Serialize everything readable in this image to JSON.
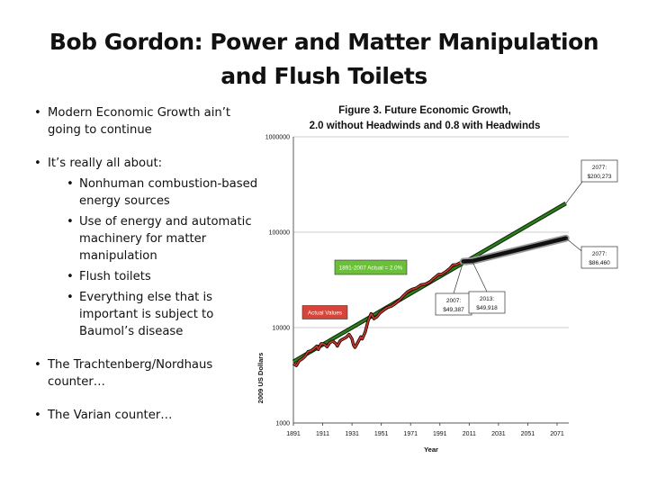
{
  "slide": {
    "title_line1": "Bob Gordon: Power and Matter Manipulation",
    "title_line2": "and Flush Toilets"
  },
  "bullets": {
    "b1": "Modern Economic Growth ain’t going to continue",
    "b2": "It’s really all about:",
    "s1": "Nonhuman combustion-based energy sources",
    "s2": "Use of energy and automatic machinery for matter manipulation",
    "s3": "Flush toilets",
    "s4": "Everything else that is important is subject to Baumol’s disease",
    "b3": "The Trachtenberg/Nordhaus counter…",
    "b4": "The Varian counter…"
  },
  "chart_data": {
    "type": "line",
    "title_line1": "Figure 3. Future Economic Growth,",
    "title_line2": "2.0 without Headwinds and 0.8 with Headwinds",
    "xlabel": "Year",
    "ylabel": "2009 US Dollars",
    "yscale": "log",
    "xlim": [
      1891,
      2079
    ],
    "ylim": [
      1000,
      1000000
    ],
    "x_ticks": [
      "1891",
      "1911",
      "1931",
      "1951",
      "1971",
      "1991",
      "2011",
      "2031",
      "2051",
      "2071"
    ],
    "y_ticks": [
      "1000",
      "10000",
      "100000",
      "1000000"
    ],
    "grid": "horizontal",
    "colors": {
      "actual": "#c0392b",
      "trend": "#2e7d1e",
      "headwinds": "#111111",
      "green_label_bg": "#6cbf3a",
      "red_label_bg": "#d9443a"
    },
    "series": [
      {
        "name": "Actual Values",
        "x": [
          1891,
          1893,
          1895,
          1897,
          1899,
          1901,
          1903,
          1905,
          1907,
          1908,
          1910,
          1912,
          1914,
          1916,
          1918,
          1920,
          1921,
          1923,
          1925,
          1927,
          1929,
          1931,
          1932,
          1933,
          1935,
          1937,
          1938,
          1940,
          1942,
          1944,
          1946,
          1948,
          1950,
          1953,
          1955,
          1958,
          1960,
          1963,
          1966,
          1969,
          1972,
          1975,
          1978,
          1981,
          1984,
          1987,
          1990,
          1992,
          1995,
          1998,
          2000,
          2002,
          2005,
          2007,
          2009,
          2011,
          2013
        ],
        "y": [
          4200,
          4000,
          4500,
          4700,
          5000,
          5600,
          5700,
          6000,
          6400,
          5900,
          6800,
          6700,
          6300,
          7000,
          7200,
          6800,
          6400,
          7300,
          7600,
          7900,
          8500,
          7600,
          6600,
          6200,
          7000,
          8000,
          7600,
          9000,
          11800,
          14000,
          12400,
          13000,
          14200,
          15400,
          16200,
          16800,
          17600,
          19200,
          21500,
          23800,
          25200,
          26000,
          28000,
          28500,
          30000,
          33000,
          36000,
          36000,
          38500,
          42000,
          45500,
          45500,
          48000,
          49387,
          47000,
          48000,
          49918
        ]
      },
      {
        "name": "1891-2007 Actual = 2.0%",
        "x": [
          1891,
          2077
        ],
        "y": [
          4400,
          200273
        ]
      },
      {
        "name": "with Headwinds",
        "x": [
          2007,
          2013,
          2077
        ],
        "y": [
          49387,
          49918,
          86460
        ]
      }
    ],
    "annotations": {
      "actual_values": "Actual Values",
      "trend_label": "1891-2007 Actual = 2.0%",
      "box_2007": {
        "year": "2007:",
        "value": "$49,387"
      },
      "box_2013": {
        "year": "2013:",
        "value": "$49,918"
      },
      "box_2077_high": {
        "year": "2077:",
        "value": "$200,273"
      },
      "box_2077_low": {
        "year": "2077:",
        "value": "$86,460"
      }
    }
  }
}
